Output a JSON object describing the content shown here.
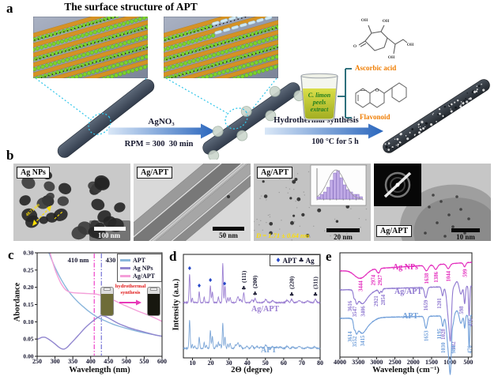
{
  "panels": {
    "a": "a",
    "b": "b",
    "c": "c",
    "d": "d",
    "e": "e"
  },
  "panel_a": {
    "title": "The surface structure of APT",
    "step1_top": "AgNO₃",
    "step1_bottom": "RPM = 300  30 min",
    "step2_top": "Hydrothermal synthesis",
    "step2_bottom": "100 °C for 5 h",
    "beaker_line1": "C. limon",
    "beaker_line2": "peels",
    "beaker_line3": "extract",
    "ascorbic_label": "Ascorbic acid",
    "flavonoid_label": "Flavonoid",
    "ascorbic_atoms": [
      [
        "O",
        1,
        36
      ],
      [
        "OH",
        13,
        3
      ],
      [
        "OH",
        40,
        4
      ],
      [
        "OH",
        71,
        34
      ],
      [
        "OH",
        47,
        50
      ]
    ],
    "flavonoid_atoms": [
      [
        "O",
        33,
        14
      ]
    ],
    "label_color": "#f07d00",
    "extract_color": "#1e7d1e"
  },
  "panel_b": {
    "tems": [
      {
        "label": "Ag NPs",
        "scale_bar": "100 nm",
        "annotation": "40.71 nm"
      },
      {
        "label": "Ag/APT",
        "scale_bar": "50 nm",
        "annotation": ""
      },
      {
        "label": "Ag/APT",
        "scale_bar": "20 nm",
        "annotation": "D = 1.71 ± 0.64 nm"
      },
      {
        "label": "Ag/APT",
        "scale_bar": "10 nm",
        "annotation": ""
      }
    ]
  },
  "chart_data": [
    {
      "id": "uvvis",
      "type": "line",
      "panel": "c",
      "xlabel": "Wavelength (nm)",
      "ylabel": "Abordance",
      "xlim": [
        250,
        600
      ],
      "ylim": [
        0,
        0.3
      ],
      "xticks": [
        250,
        300,
        350,
        400,
        450,
        500,
        550,
        600
      ],
      "ytick_labels": [
        "0.00",
        "0.05",
        "0.10",
        "0.15",
        "0.20",
        "0.25",
        "0.30"
      ],
      "vlines": [
        {
          "x": 410,
          "label": "410 nm",
          "color": "#ee3fc8"
        },
        {
          "x": 430,
          "label": "430 nm",
          "color": "#7472d6"
        }
      ],
      "inset": {
        "line1": "hydrothermal",
        "line2": "synthesis",
        "text_color": "#e01818",
        "arrow_color": "#e838b8",
        "vial_left_color": "#6e6c38",
        "vial_right_color": "#17170f"
      },
      "series": [
        {
          "name": "APT",
          "color": "#8ab6dc",
          "x": [
            283,
            290,
            300,
            310,
            320,
            330,
            340,
            352,
            365,
            380,
            395,
            410,
            425,
            440,
            460,
            480,
            500,
            525,
            550,
            575,
            600
          ],
          "y": [
            0.3,
            0.282,
            0.258,
            0.237,
            0.218,
            0.201,
            0.186,
            0.171,
            0.157,
            0.143,
            0.13,
            0.119,
            0.11,
            0.103,
            0.094,
            0.087,
            0.081,
            0.074,
            0.068,
            0.063,
            0.058
          ]
        },
        {
          "name": "Ag NPs",
          "color": "#9186cf",
          "x": [
            250,
            257,
            264,
            272,
            280,
            290,
            300,
            310,
            318,
            326,
            334,
            344,
            356,
            370,
            385,
            400,
            412,
            422,
            430,
            440,
            450,
            462,
            476,
            492,
            510,
            530,
            555,
            580,
            600
          ],
          "y": [
            0.049,
            0.052,
            0.055,
            0.055,
            0.051,
            0.044,
            0.036,
            0.027,
            0.022,
            0.021,
            0.026,
            0.037,
            0.05,
            0.066,
            0.083,
            0.097,
            0.107,
            0.114,
            0.118,
            0.116,
            0.111,
            0.104,
            0.096,
            0.089,
            0.082,
            0.076,
            0.069,
            0.062,
            0.058
          ]
        },
        {
          "name": "Ag/APT",
          "color": "#f49fd9",
          "x": [
            286,
            292,
            300,
            308,
            316,
            324,
            332,
            342,
            355,
            370,
            390,
            410,
            425,
            440,
            455,
            470,
            490,
            510,
            535,
            560,
            580,
            600
          ],
          "y": [
            0.3,
            0.278,
            0.252,
            0.231,
            0.213,
            0.2,
            0.191,
            0.186,
            0.184,
            0.183,
            0.182,
            0.181,
            0.178,
            0.173,
            0.167,
            0.16,
            0.15,
            0.141,
            0.13,
            0.12,
            0.111,
            0.101
          ]
        }
      ]
    },
    {
      "id": "size_hist",
      "type": "bar",
      "panel": "b3-inset",
      "values": [
        1,
        2,
        3,
        5,
        8,
        11,
        12,
        9,
        6,
        4,
        3,
        2,
        2,
        1
      ],
      "bar_color": "#c0aae6",
      "bar_edge": "#7a5fb8",
      "curve_color": "#9a9a9a"
    },
    {
      "id": "xrd",
      "type": "line",
      "panel": "d",
      "xlabel": "2Θ (degree)",
      "ylabel": "Intensity (a.u.)",
      "xlim": [
        5,
        80
      ],
      "xticks": [
        10,
        20,
        30,
        40,
        50,
        60,
        70,
        80
      ],
      "legend": {
        "apt_marker": "♦",
        "apt_label": "APT",
        "ag_marker": "♣",
        "ag_label": "Ag",
        "apt_marker_color": "#2748c8",
        "text_color": "#15152e"
      },
      "apt_markers": [
        8.4,
        13.7,
        19.8,
        27.6
      ],
      "ag_markers": [
        {
          "x": 38.1,
          "hkl": "(111)"
        },
        {
          "x": 44.3,
          "hkl": "(200)"
        },
        {
          "x": 64.4,
          "hkl": "(220)"
        },
        {
          "x": 77.4,
          "hkl": "(311)"
        }
      ],
      "series": [
        {
          "name": "Ag/APT",
          "color": "#9b7fd2",
          "peaks": [
            [
              8.4,
              0.72,
              0.3
            ],
            [
              9.9,
              0.12,
              0.25
            ],
            [
              13.7,
              0.28,
              0.28
            ],
            [
              16.4,
              0.13,
              0.26
            ],
            [
              19.8,
              0.42,
              0.3
            ],
            [
              20.9,
              0.28,
              0.28
            ],
            [
              24.2,
              0.14,
              0.3
            ],
            [
              26.6,
              1.0,
              0.26
            ],
            [
              27.8,
              0.42,
              0.28
            ],
            [
              29.4,
              0.12,
              0.3
            ],
            [
              30.6,
              0.13,
              0.35
            ],
            [
              34.9,
              0.15,
              0.5
            ],
            [
              36.4,
              0.08,
              0.4
            ],
            [
              38.1,
              0.24,
              0.35
            ],
            [
              42.7,
              0.07,
              0.5
            ],
            [
              44.3,
              0.1,
              0.4
            ],
            [
              50.2,
              0.08,
              0.6
            ],
            [
              54.0,
              0.05,
              0.6
            ],
            [
              61.9,
              0.06,
              0.6
            ],
            [
              64.4,
              0.08,
              0.5
            ],
            [
              68.6,
              0.05,
              0.7
            ],
            [
              73.2,
              0.04,
              0.7
            ],
            [
              77.4,
              0.08,
              0.5
            ]
          ]
        },
        {
          "name": "APT",
          "color": "#7fa8d8",
          "peaks": [
            [
              8.4,
              1.0,
              0.3
            ],
            [
              9.9,
              0.15,
              0.25
            ],
            [
              11.2,
              0.08,
              0.3
            ],
            [
              13.7,
              0.4,
              0.28
            ],
            [
              16.4,
              0.2,
              0.26
            ],
            [
              17.6,
              0.1,
              0.3
            ],
            [
              19.8,
              0.62,
              0.3
            ],
            [
              20.9,
              0.44,
              0.28
            ],
            [
              23.0,
              0.12,
              0.3
            ],
            [
              24.2,
              0.22,
              0.3
            ],
            [
              25.2,
              0.15,
              0.3
            ],
            [
              26.6,
              0.9,
              0.26
            ],
            [
              27.8,
              0.4,
              0.28
            ],
            [
              29.4,
              0.15,
              0.3
            ],
            [
              30.6,
              0.18,
              0.35
            ],
            [
              33.6,
              0.12,
              0.4
            ],
            [
              34.9,
              0.2,
              0.5
            ],
            [
              36.4,
              0.11,
              0.4
            ],
            [
              39.8,
              0.08,
              0.5
            ],
            [
              42.7,
              0.1,
              0.5
            ],
            [
              45.4,
              0.07,
              0.5
            ],
            [
              47.5,
              0.06,
              0.5
            ],
            [
              50.2,
              0.12,
              0.6
            ],
            [
              53.9,
              0.06,
              0.6
            ],
            [
              56.2,
              0.05,
              0.6
            ],
            [
              58.2,
              0.05,
              0.6
            ],
            [
              61.9,
              0.08,
              0.6
            ],
            [
              65.1,
              0.05,
              0.6
            ],
            [
              68.6,
              0.07,
              0.7
            ],
            [
              73.2,
              0.04,
              0.7
            ],
            [
              76.8,
              0.05,
              0.7
            ]
          ]
        }
      ]
    },
    {
      "id": "ftir",
      "type": "line",
      "panel": "e",
      "xlabel": "Wavelength (cm⁻¹)",
      "xlim": [
        4000,
        400
      ],
      "xticks": [
        4000,
        3500,
        3000,
        2500,
        2000,
        1500,
        1000,
        500
      ],
      "series": [
        {
          "name": "Ag NPs",
          "color": "#e32bbd",
          "base": [
            33,
            22
          ],
          "dips": [
            [
              3444,
              11,
              160
            ],
            [
              2974,
              4,
              30,
              -3
            ],
            [
              2927,
              4,
              26,
              3
            ],
            [
              1638,
              7,
              50
            ],
            [
              1386,
              6,
              45
            ],
            [
              1044,
              6,
              45
            ],
            [
              599,
              5,
              30
            ]
          ],
          "extra": []
        },
        {
          "name": "Ag/APT",
          "color": "#8f78d0",
          "base": [
            57,
            52
          ],
          "dips": [
            [
              3616,
              7,
              20,
              -3
            ],
            [
              3547,
              11,
              35,
              0
            ],
            [
              3406,
              15,
              110,
              4
            ],
            [
              2921,
              5,
              25,
              -2
            ],
            [
              2854,
              4,
              20,
              4
            ],
            [
              1659,
              13,
              35
            ],
            [
              1201,
              11,
              25,
              -2
            ],
            [
              1028,
              42,
              48,
              -5
            ],
            [
              982,
              40,
              26,
              6
            ],
            [
              598,
              22,
              20,
              -2
            ],
            [
              476,
              38,
              16,
              4
            ]
          ],
          "extra": [
            [
              3230,
              6,
              150
            ],
            [
              810,
              -6,
              40
            ],
            [
              700,
              10,
              35
            ]
          ]
        },
        {
          "name": "APT",
          "color": "#6f9ed9",
          "base": [
            93,
            89
          ],
          "dips": [
            [
              3614,
              8,
              20,
              -3
            ],
            [
              3552,
              12,
              35,
              0
            ],
            [
              3415,
              16,
              110,
              4
            ],
            [
              1653,
              15,
              35
            ],
            [
              1195,
              13,
              25,
              -2
            ],
            [
              1030,
              46,
              48,
              -5
            ],
            [
              984,
              42,
              26,
              6
            ],
            [
              476,
              40,
              16,
              3
            ]
          ],
          "extra": [
            [
              3230,
              7,
              150
            ],
            [
              912,
              8,
              20
            ],
            [
              810,
              -6,
              40
            ],
            [
              700,
              10,
              35
            ],
            [
              598,
              16,
              18
            ]
          ]
        }
      ]
    }
  ]
}
